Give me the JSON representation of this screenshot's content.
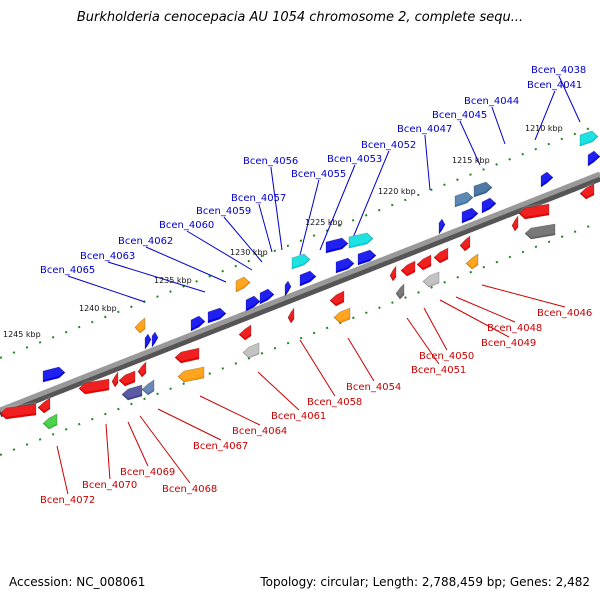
{
  "title": "Burkholderia cenocepacia AU 1054 chromosome 2, complete sequ...",
  "accession": "Accession: NC_008061",
  "topology": "Topology: circular; Length: 2,788,459 bp; Genes: 2,482",
  "colors": {
    "forward_label": "#0000cc",
    "reverse_label": "#cc0000",
    "backbone": "#888888",
    "blue": "#0000ee",
    "red": "#ee0000",
    "gray": "#aaaaaa",
    "orange": "#ff9900",
    "cyan": "#00dddd",
    "green": "#33cc33"
  },
  "ticks": [
    "1210 kbp",
    "1215 kbp",
    "1220 kbp",
    "1225 kbp",
    "1230 kbp",
    "1235 kbp",
    "1240 kbp",
    "1245 kbp"
  ],
  "forward_genes": [
    "Bcen_4038",
    "Bcen_4041",
    "Bcen_4044",
    "Bcen_4045",
    "Bcen_4047",
    "Bcen_4052",
    "Bcen_4053",
    "Bcen_4055",
    "Bcen_4056",
    "Bcen_4057",
    "Bcen_4059",
    "Bcen_4060",
    "Bcen_4062",
    "Bcen_4063",
    "Bcen_4065"
  ],
  "reverse_genes": [
    "Bcen_4046",
    "Bcen_4048",
    "Bcen_4049",
    "Bcen_4050",
    "Bcen_4051",
    "Bcen_4054",
    "Bcen_4058",
    "Bcen_4061",
    "Bcen_4064",
    "Bcen_4067",
    "Bcen_4068",
    "Bcen_4069",
    "Bcen_4070",
    "Bcen_4072"
  ]
}
